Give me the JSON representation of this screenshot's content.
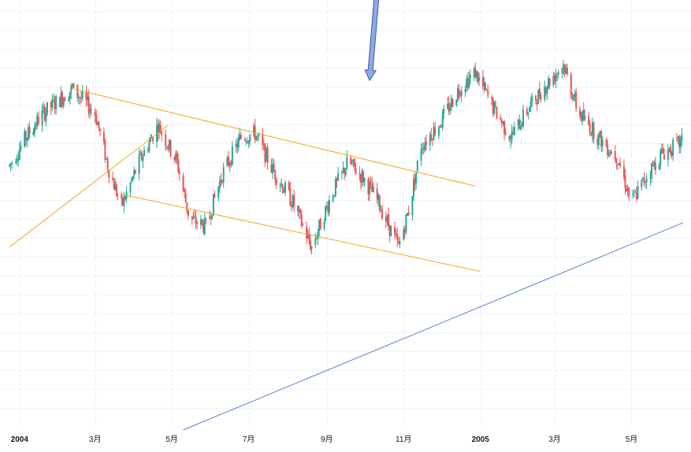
{
  "chart_data": {
    "type": "candlestick",
    "title": "",
    "xlabel": "",
    "ylabel": "",
    "grid": true,
    "legend": "none",
    "colors": {
      "up": "#26a69a",
      "down": "#ef5350",
      "channel": "#f5a623",
      "trend": "#5b7fd6",
      "arrow_fill": "#8ea9e8",
      "arrow_stroke": "#3d5a99",
      "grid": "#f0f3fa",
      "text": "#131722"
    },
    "x_range": [
      "2003-12-24",
      "2005-06-11"
    ],
    "y_range": [
      0,
      100
    ],
    "x_ticks": [
      {
        "label": "2004",
        "date": "2004-01-01",
        "major": true
      },
      {
        "label": "3月",
        "date": "2004-03-01",
        "major": false
      },
      {
        "label": "5月",
        "date": "2004-05-01",
        "major": false
      },
      {
        "label": "7月",
        "date": "2004-07-01",
        "major": false
      },
      {
        "label": "9月",
        "date": "2004-09-01",
        "major": false
      },
      {
        "label": "11月",
        "date": "2004-11-01",
        "major": false
      },
      {
        "label": "2005",
        "date": "2005-01-01",
        "major": true
      },
      {
        "label": "3月",
        "date": "2005-03-01",
        "major": false
      },
      {
        "label": "5月",
        "date": "2005-05-01",
        "major": false
      }
    ],
    "price_path": [
      {
        "date": "2003-12-24",
        "y": 65
      },
      {
        "date": "2004-01-06",
        "y": 72
      },
      {
        "date": "2004-01-20",
        "y": 78
      },
      {
        "date": "2004-02-12",
        "y": 84
      },
      {
        "date": "2004-03-01",
        "y": 78
      },
      {
        "date": "2004-03-12",
        "y": 64
      },
      {
        "date": "2004-03-22",
        "y": 55
      },
      {
        "date": "2004-04-05",
        "y": 66
      },
      {
        "date": "2004-04-20",
        "y": 75
      },
      {
        "date": "2004-05-05",
        "y": 66
      },
      {
        "date": "2004-05-15",
        "y": 52
      },
      {
        "date": "2004-05-28",
        "y": 50
      },
      {
        "date": "2004-06-10",
        "y": 63
      },
      {
        "date": "2004-06-25",
        "y": 72
      },
      {
        "date": "2004-07-06",
        "y": 73
      },
      {
        "date": "2004-07-20",
        "y": 64
      },
      {
        "date": "2004-08-05",
        "y": 56
      },
      {
        "date": "2004-08-20",
        "y": 45
      },
      {
        "date": "2004-09-05",
        "y": 58
      },
      {
        "date": "2004-09-18",
        "y": 66
      },
      {
        "date": "2004-09-30",
        "y": 62
      },
      {
        "date": "2004-10-12",
        "y": 56
      },
      {
        "date": "2004-10-28",
        "y": 45
      },
      {
        "date": "2004-11-05",
        "y": 54
      },
      {
        "date": "2004-11-15",
        "y": 70
      },
      {
        "date": "2004-12-01",
        "y": 76
      },
      {
        "date": "2004-12-15",
        "y": 84
      },
      {
        "date": "2004-12-28",
        "y": 88
      },
      {
        "date": "2005-01-10",
        "y": 80
      },
      {
        "date": "2005-01-25",
        "y": 72
      },
      {
        "date": "2005-02-10",
        "y": 80
      },
      {
        "date": "2005-02-25",
        "y": 86
      },
      {
        "date": "2005-03-08",
        "y": 90
      },
      {
        "date": "2005-03-20",
        "y": 78
      },
      {
        "date": "2005-04-05",
        "y": 72
      },
      {
        "date": "2005-04-20",
        "y": 67
      },
      {
        "date": "2005-05-01",
        "y": 56
      },
      {
        "date": "2005-05-12",
        "y": 62
      },
      {
        "date": "2005-05-25",
        "y": 68
      },
      {
        "date": "2005-06-11",
        "y": 71
      }
    ],
    "drawings": [
      {
        "kind": "trendline",
        "color": "channel",
        "from": {
          "date": "2004-02-12",
          "y": 84
        },
        "to": {
          "date": "2004-12-28",
          "y": 60
        }
      },
      {
        "kind": "trendline",
        "color": "channel",
        "from": {
          "date": "2004-03-22",
          "y": 58
        },
        "to": {
          "date": "2005-01-01",
          "y": 39
        }
      },
      {
        "kind": "trendline",
        "color": "channel",
        "from": {
          "date": "2003-12-24",
          "y": 45
        },
        "to": {
          "date": "2004-04-28",
          "y": 75
        }
      },
      {
        "kind": "trendline",
        "color": "trend",
        "from": {
          "date": "2004-05-10",
          "y": 0
        },
        "to": {
          "date": "2005-06-11",
          "y": 51
        }
      },
      {
        "kind": "arrow",
        "from": {
          "date": "2004-10-15",
          "y": 123
        },
        "to": {
          "date": "2004-10-05",
          "y": 86
        }
      }
    ]
  }
}
